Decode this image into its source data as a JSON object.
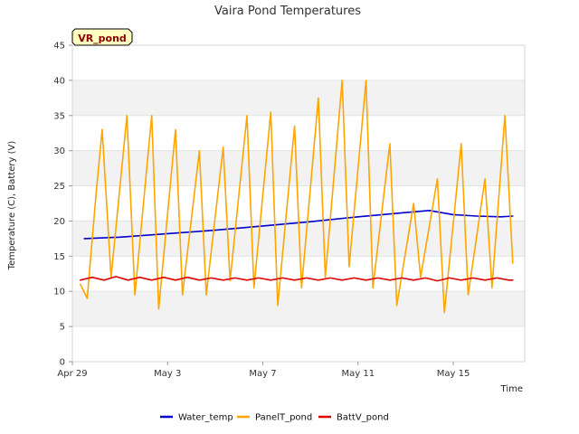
{
  "chart_data": {
    "type": "line",
    "title": "Vaira Pond Temperatures",
    "xlabel": "Time",
    "ylabel": "Temperature (C), Battery (V)",
    "badge": "VR_pond",
    "xlim": [
      "2023-04-29",
      "2023-05-18"
    ],
    "x_ticks": [
      {
        "date": "2023-04-29",
        "label": "Apr 29"
      },
      {
        "date": "2023-05-03",
        "label": "May 3"
      },
      {
        "date": "2023-05-07",
        "label": "May 7"
      },
      {
        "date": "2023-05-11",
        "label": "May 11"
      },
      {
        "date": "2023-05-15",
        "label": "May 15"
      }
    ],
    "ylim": [
      0,
      45
    ],
    "y_ticks": [
      0,
      5,
      10,
      15,
      20,
      25,
      30,
      35,
      40,
      45
    ],
    "grid": "horizontal-banded",
    "legend_position": "bottom",
    "series": [
      {
        "name": "Water_temp",
        "color": "#0000cc",
        "x": [
          "2023-04-29T12:00",
          "2023-05-01T00:00",
          "2023-05-03T00:00",
          "2023-05-05T00:00",
          "2023-05-07T00:00",
          "2023-05-09T00:00",
          "2023-05-11T00:00",
          "2023-05-13T00:00",
          "2023-05-14T00:00",
          "2023-05-15T00:00",
          "2023-05-16T00:00",
          "2023-05-17T00:00",
          "2023-05-17T12:00"
        ],
        "y": [
          17.5,
          17.7,
          18.2,
          18.7,
          19.3,
          19.9,
          20.6,
          21.2,
          21.5,
          20.9,
          20.7,
          20.6,
          20.7
        ]
      },
      {
        "name": "PanelT_pond",
        "color": "#ffa500",
        "x": [
          "2023-04-29T08:00",
          "2023-04-29T15:00",
          "2023-04-30T00:00",
          "2023-04-30T06:00",
          "2023-04-30T15:00",
          "2023-05-01T07:00",
          "2023-05-01T15:00",
          "2023-05-02T08:00",
          "2023-05-02T15:00",
          "2023-05-03T08:00",
          "2023-05-03T15:00",
          "2023-05-04T08:00",
          "2023-05-04T15:00",
          "2023-05-05T08:00",
          "2023-05-05T15:00",
          "2023-05-06T08:00",
          "2023-05-06T15:00",
          "2023-05-07T08:00",
          "2023-05-07T15:00",
          "2023-05-08T08:00",
          "2023-05-08T15:00",
          "2023-05-09T08:00",
          "2023-05-09T15:00",
          "2023-05-10T08:00",
          "2023-05-10T15:00",
          "2023-05-11T08:00",
          "2023-05-11T15:00",
          "2023-05-12T08:00",
          "2023-05-12T15:00",
          "2023-05-13T08:00",
          "2023-05-13T15:00",
          "2023-05-14T08:00",
          "2023-05-14T15:00",
          "2023-05-15T08:00",
          "2023-05-15T15:00",
          "2023-05-16T08:00",
          "2023-05-16T15:00",
          "2023-05-17T04:00",
          "2023-05-17T12:00"
        ],
        "y": [
          11.0,
          9.0,
          24.0,
          33.0,
          12.0,
          35.0,
          9.5,
          35.0,
          7.5,
          33.0,
          9.5,
          30.0,
          9.5,
          30.5,
          11.5,
          35.0,
          10.5,
          35.5,
          8.0,
          33.5,
          10.5,
          37.5,
          12.0,
          40.0,
          13.5,
          40.0,
          10.5,
          31.0,
          8.0,
          22.5,
          12.0,
          26.0,
          7.0,
          31.0,
          9.5,
          26.0,
          10.5,
          35.0,
          14.0
        ]
      },
      {
        "name": "BattV_pond",
        "color": "#dd0000",
        "x": [
          "2023-04-29T08:00",
          "2023-04-29T20:00",
          "2023-04-30T08:00",
          "2023-04-30T20:00",
          "2023-05-01T08:00",
          "2023-05-01T20:00",
          "2023-05-02T08:00",
          "2023-05-02T20:00",
          "2023-05-03T08:00",
          "2023-05-03T20:00",
          "2023-05-04T08:00",
          "2023-05-04T20:00",
          "2023-05-05T08:00",
          "2023-05-05T20:00",
          "2023-05-06T08:00",
          "2023-05-06T20:00",
          "2023-05-07T08:00",
          "2023-05-07T20:00",
          "2023-05-08T08:00",
          "2023-05-08T20:00",
          "2023-05-09T08:00",
          "2023-05-09T20:00",
          "2023-05-10T08:00",
          "2023-05-10T20:00",
          "2023-05-11T08:00",
          "2023-05-11T20:00",
          "2023-05-12T08:00",
          "2023-05-12T20:00",
          "2023-05-13T08:00",
          "2023-05-13T20:00",
          "2023-05-14T08:00",
          "2023-05-14T20:00",
          "2023-05-15T08:00",
          "2023-05-15T20:00",
          "2023-05-16T08:00",
          "2023-05-16T20:00",
          "2023-05-17T08:00",
          "2023-05-17T12:00"
        ],
        "y": [
          11.6,
          12.0,
          11.6,
          12.1,
          11.6,
          12.0,
          11.6,
          12.0,
          11.6,
          12.0,
          11.6,
          11.9,
          11.6,
          11.9,
          11.6,
          11.9,
          11.6,
          11.9,
          11.6,
          11.9,
          11.6,
          11.9,
          11.6,
          11.9,
          11.6,
          11.9,
          11.6,
          11.9,
          11.6,
          11.9,
          11.5,
          11.9,
          11.6,
          11.9,
          11.6,
          11.9,
          11.6,
          11.6
        ]
      }
    ]
  }
}
